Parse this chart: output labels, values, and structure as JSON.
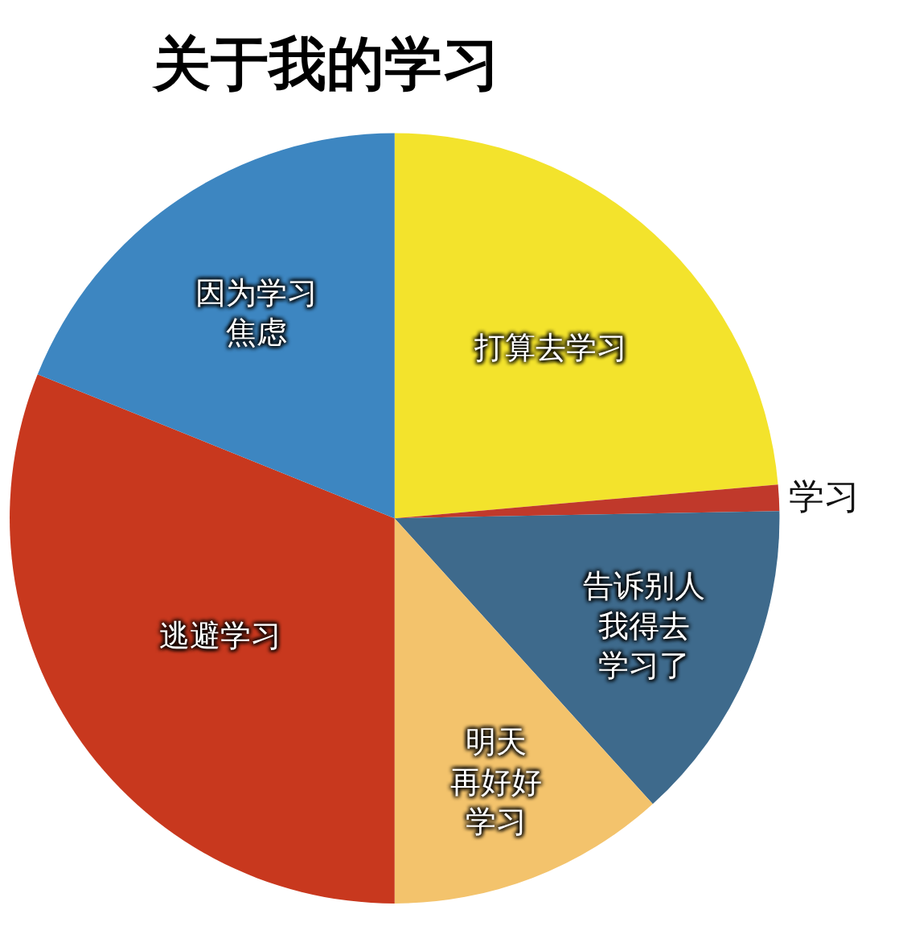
{
  "chart_data": {
    "type": "pie",
    "title": "关于我的学习",
    "categories": [
      "打算去学习",
      "学习",
      "告诉别人我得去学习了",
      "明天再好好学习",
      "逃避学习",
      "因为学习焦虑"
    ],
    "values": [
      23.6,
      1.1,
      13.6,
      11.7,
      31.1,
      18.9
    ],
    "colors": [
      "#f3e32c",
      "#c0392b",
      "#3e6a8c",
      "#f3c36c",
      "#c8381e",
      "#3d86c1"
    ],
    "legend": false
  }
}
